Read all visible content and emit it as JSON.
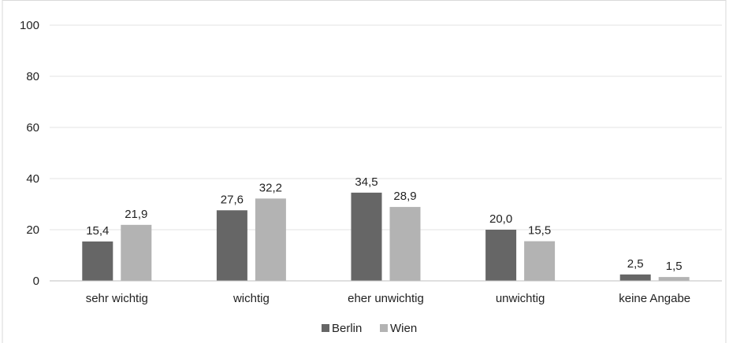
{
  "chart_data": {
    "type": "bar",
    "categories": [
      "sehr wichtig",
      "wichtig",
      "eher unwichtig",
      "unwichtig",
      "keine Angabe"
    ],
    "series": [
      {
        "name": "Berlin",
        "values": [
          15.4,
          27.6,
          34.5,
          20.0,
          2.5
        ],
        "labels": [
          "15,4",
          "27,6",
          "34,5",
          "20,0",
          "2,5"
        ],
        "color": "#666666"
      },
      {
        "name": "Wien",
        "values": [
          21.9,
          32.2,
          28.9,
          15.5,
          1.5
        ],
        "labels": [
          "21,9",
          "32,2",
          "28,9",
          "15,5",
          "1,5"
        ],
        "color": "#b3b3b3"
      }
    ],
    "ylim": [
      0,
      100
    ],
    "yticks": [
      0,
      20,
      40,
      60,
      80,
      100
    ],
    "grid": true,
    "legend_position": "bottom"
  }
}
